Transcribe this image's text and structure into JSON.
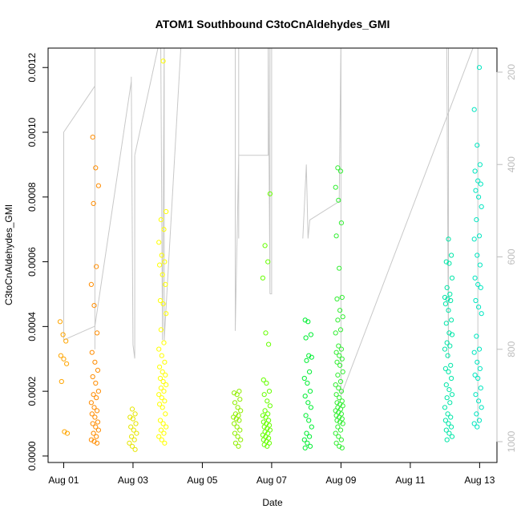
{
  "chart_data": {
    "type": "scatter",
    "title": "ATOM1 Southbound C3toCnAldehydes_GMI",
    "xlabel": "Date",
    "ylabel": "C3toCnAldehydes_GMI",
    "x_tick_labels": [
      "Aug 01",
      "Aug 03",
      "Aug 05",
      "Aug 07",
      "Aug 09",
      "Aug 11",
      "Aug 13"
    ],
    "x_tick_days": [
      1,
      3,
      5,
      7,
      9,
      11,
      13
    ],
    "xlim_days": [
      0.55,
      13.5
    ],
    "ylim": [
      -2e-05,
      0.00126
    ],
    "y_ticks": [
      0.0,
      0.0002,
      0.0004,
      0.0006,
      0.0008,
      0.001,
      0.0012
    ],
    "y_tick_labels": [
      "0.0000",
      "0.0002",
      "0.0004",
      "0.0006",
      "0.0008",
      "0.0010",
      "0.0012"
    ],
    "right_axis": {
      "reversed": true,
      "ticks": [
        200,
        400,
        600,
        800,
        1000
      ],
      "tick_labels": [
        "200",
        "400",
        "600",
        "800",
        "1000"
      ],
      "color": "#bdbdbd"
    },
    "point_colors": {
      "Aug 01": "#ffa500",
      "Aug 02": "#ff8c00",
      "Aug 03": "#e6e600",
      "Aug 04": "#ffff00",
      "Aug 06": "#90ee00",
      "Aug 07": "#66ff00",
      "Aug 08": "#00ee33",
      "Aug 09": "#33ee33",
      "Aug 12": "#00e6a8",
      "Aug 13": "#00e6c0"
    },
    "series": [
      {
        "day": 1.0,
        "color": "#ffa500",
        "y": [
          0.000415,
          0.000375,
          0.000355,
          0.00031,
          0.0003,
          0.000285,
          0.00023,
          7.5e-05,
          7e-05
        ]
      },
      {
        "day": 1.9,
        "color": "#ff8c00",
        "y": [
          0.000985,
          0.00089,
          0.000835,
          0.00078,
          0.000585,
          0.00053,
          0.000465,
          0.00038,
          0.00032,
          0.00029,
          0.000265,
          0.000245,
          0.000225,
          0.0002,
          0.00019,
          0.00018,
          0.000165,
          0.00015,
          0.00014,
          0.00013,
          0.00012,
          0.000105,
          0.0001,
          9e-05,
          8e-05,
          7e-05,
          6e-05,
          5e-05,
          4.5e-05,
          4e-05
        ]
      },
      {
        "day": 3.0,
        "color": "#e6e600",
        "y": [
          0.000145,
          0.00013,
          0.00012,
          0.000115,
          0.0001,
          9e-05,
          8e-05,
          7e-05,
          6e-05,
          5e-05,
          4e-05,
          3e-05,
          2e-05
        ]
      },
      {
        "day": 3.85,
        "color": "#ffff00",
        "y": [
          0.00122,
          0.000755,
          0.00073,
          0.0007,
          0.00066,
          0.00062,
          0.0006,
          0.00059,
          0.00056,
          0.00053,
          0.00048,
          0.00047,
          0.00044,
          0.00039,
          0.00035,
          0.00033,
          0.00031,
          0.00029,
          0.000275,
          0.00026,
          0.00025,
          0.00024,
          0.00023,
          0.00022,
          0.00021,
          0.0002,
          0.00019,
          0.00018,
          0.00017,
          0.00016,
          0.00015,
          0.00013,
          0.00011,
          0.0001,
          9e-05,
          8e-05,
          7e-05,
          6e-05,
          5e-05,
          4e-05
        ]
      },
      {
        "day": 6.0,
        "color": "#90ee00",
        "y": [
          0.0002,
          0.000195,
          0.00019,
          0.000175,
          0.000165,
          0.00015,
          0.00014,
          0.00013,
          0.000125,
          0.00012,
          0.000115,
          0.00011,
          0.0001,
          9e-05,
          8e-05,
          7e-05,
          6e-05,
          5e-05,
          4e-05,
          3e-05
        ]
      },
      {
        "day": 6.85,
        "color": "#66ff00",
        "y": [
          0.00081,
          0.00065,
          0.0006,
          0.00055,
          0.00038,
          0.000345,
          0.000235,
          0.000225,
          0.0002,
          0.00019,
          0.00017,
          0.000155,
          0.00014,
          0.00013,
          0.000125,
          0.00012,
          0.00011,
          0.000105,
          0.0001,
          9.5e-05,
          9e-05,
          8.5e-05,
          8e-05,
          7.5e-05,
          7e-05,
          6.5e-05,
          6e-05,
          5.5e-05,
          5e-05,
          4.5e-05,
          4e-05,
          3.5e-05,
          3e-05
        ]
      },
      {
        "day": 8.05,
        "color": "#00ee33",
        "y": [
          0.00042,
          0.000415,
          0.000375,
          0.000365,
          0.00031,
          0.000305,
          0.000295,
          0.00026,
          0.00024,
          0.000225,
          0.0002,
          0.000185,
          0.000165,
          0.00015,
          0.000125,
          0.00011,
          9e-05,
          7e-05,
          6e-05,
          5e-05,
          4e-05,
          3e-05,
          2.5e-05
        ]
      },
      {
        "day": 8.95,
        "color": "#33ee33",
        "y": [
          0.00089,
          0.00088,
          0.00083,
          0.00079,
          0.00072,
          0.00068,
          0.00058,
          0.00049,
          0.000485,
          0.00045,
          0.00043,
          0.00042,
          0.00039,
          0.00038,
          0.00034,
          0.00033,
          0.00032,
          0.00031,
          0.0003,
          0.00029,
          0.00028,
          0.00026,
          0.00025,
          0.00023,
          0.00022,
          0.00021,
          0.0002,
          0.00019,
          0.00018,
          0.00017,
          0.000165,
          0.00016,
          0.000155,
          0.00015,
          0.000145,
          0.00014,
          0.000135,
          0.00013,
          0.000125,
          0.00012,
          0.000115,
          0.00011,
          0.000105,
          0.0001,
          9e-05,
          8e-05,
          7e-05,
          6e-05,
          5e-05,
          4e-05,
          3e-05,
          2.5e-05
        ]
      },
      {
        "day": 12.1,
        "color": "#00e6a8",
        "y": [
          0.00067,
          0.00062,
          0.0006,
          0.000595,
          0.00055,
          0.00052,
          0.0005,
          0.00049,
          0.000485,
          0.00048,
          0.00047,
          0.00045,
          0.00042,
          0.00041,
          0.00038,
          0.000375,
          0.00035,
          0.00034,
          0.00033,
          0.00031,
          0.00028,
          0.00027,
          0.00026,
          0.00024,
          0.00022,
          0.000205,
          0.00019,
          0.00018,
          0.000165,
          0.00015,
          0.00013,
          0.00012,
          0.00011,
          0.0001,
          9e-05,
          8e-05,
          7e-05,
          6e-05,
          5e-05
        ]
      },
      {
        "day": 12.95,
        "color": "#00e6c0",
        "y": [
          0.0012,
          0.00107,
          0.00096,
          0.0009,
          0.00088,
          0.00085,
          0.00084,
          0.00082,
          0.0008,
          0.00077,
          0.00073,
          0.00068,
          0.00067,
          0.00062,
          0.00059,
          0.00055,
          0.00053,
          0.00052,
          0.00048,
          0.00046,
          0.00044,
          0.00037,
          0.00033,
          0.00032,
          0.00029,
          0.00027,
          0.00025,
          0.00024,
          0.00021,
          0.00019,
          0.00017,
          0.00015,
          0.00013,
          0.00011,
          0.0001,
          9e-05
        ]
      }
    ],
    "altitude_profile": {
      "color": "#c8c8c8",
      "description_units": "right axis values (reversed)",
      "segments": [
        {
          "x": [
            1.0,
            1.0,
            1.9,
            1.9,
            1.9
          ],
          "y": [
            780,
            330,
            230,
            800,
            120
          ]
        },
        {
          "x": [
            1.0,
            1.9,
            2.95,
            2.95,
            3.0,
            3.05,
            3.05
          ],
          "y": [
            780,
            750,
            220,
            210,
            790,
            820,
            380
          ]
        },
        {
          "x": [
            3.05,
            3.8,
            3.85,
            3.9,
            3.9
          ],
          "y": [
            380,
            120,
            780,
            120,
            780
          ]
        },
        {
          "x": [
            3.9,
            4.4
          ],
          "y": [
            780,
            120
          ]
        },
        {
          "x": [
            5.95,
            5.95,
            6.05,
            6.05,
            6.05
          ],
          "y": [
            120,
            760,
            380,
            120,
            560
          ]
        },
        {
          "x": [
            6.05,
            6.9,
            6.9,
            6.95,
            6.95
          ],
          "y": [
            380,
            380,
            120,
            680,
            120
          ]
        },
        {
          "x": [
            6.95,
            7.0,
            7.0
          ],
          "y": [
            680,
            680,
            120
          ]
        },
        {
          "x": [
            7.9,
            8.0,
            8.05,
            8.1,
            8.95
          ],
          "y": [
            560,
            400,
            560,
            520,
            480
          ]
        },
        {
          "x": [
            8.95,
            9.0,
            9.0,
            12.95,
            12.95
          ],
          "y": [
            480,
            120,
            900,
            120,
            960
          ]
        },
        {
          "x": [
            12.05,
            12.1,
            12.1,
            12.95
          ],
          "y": [
            120,
            820,
            120,
            120
          ]
        }
      ]
    }
  }
}
